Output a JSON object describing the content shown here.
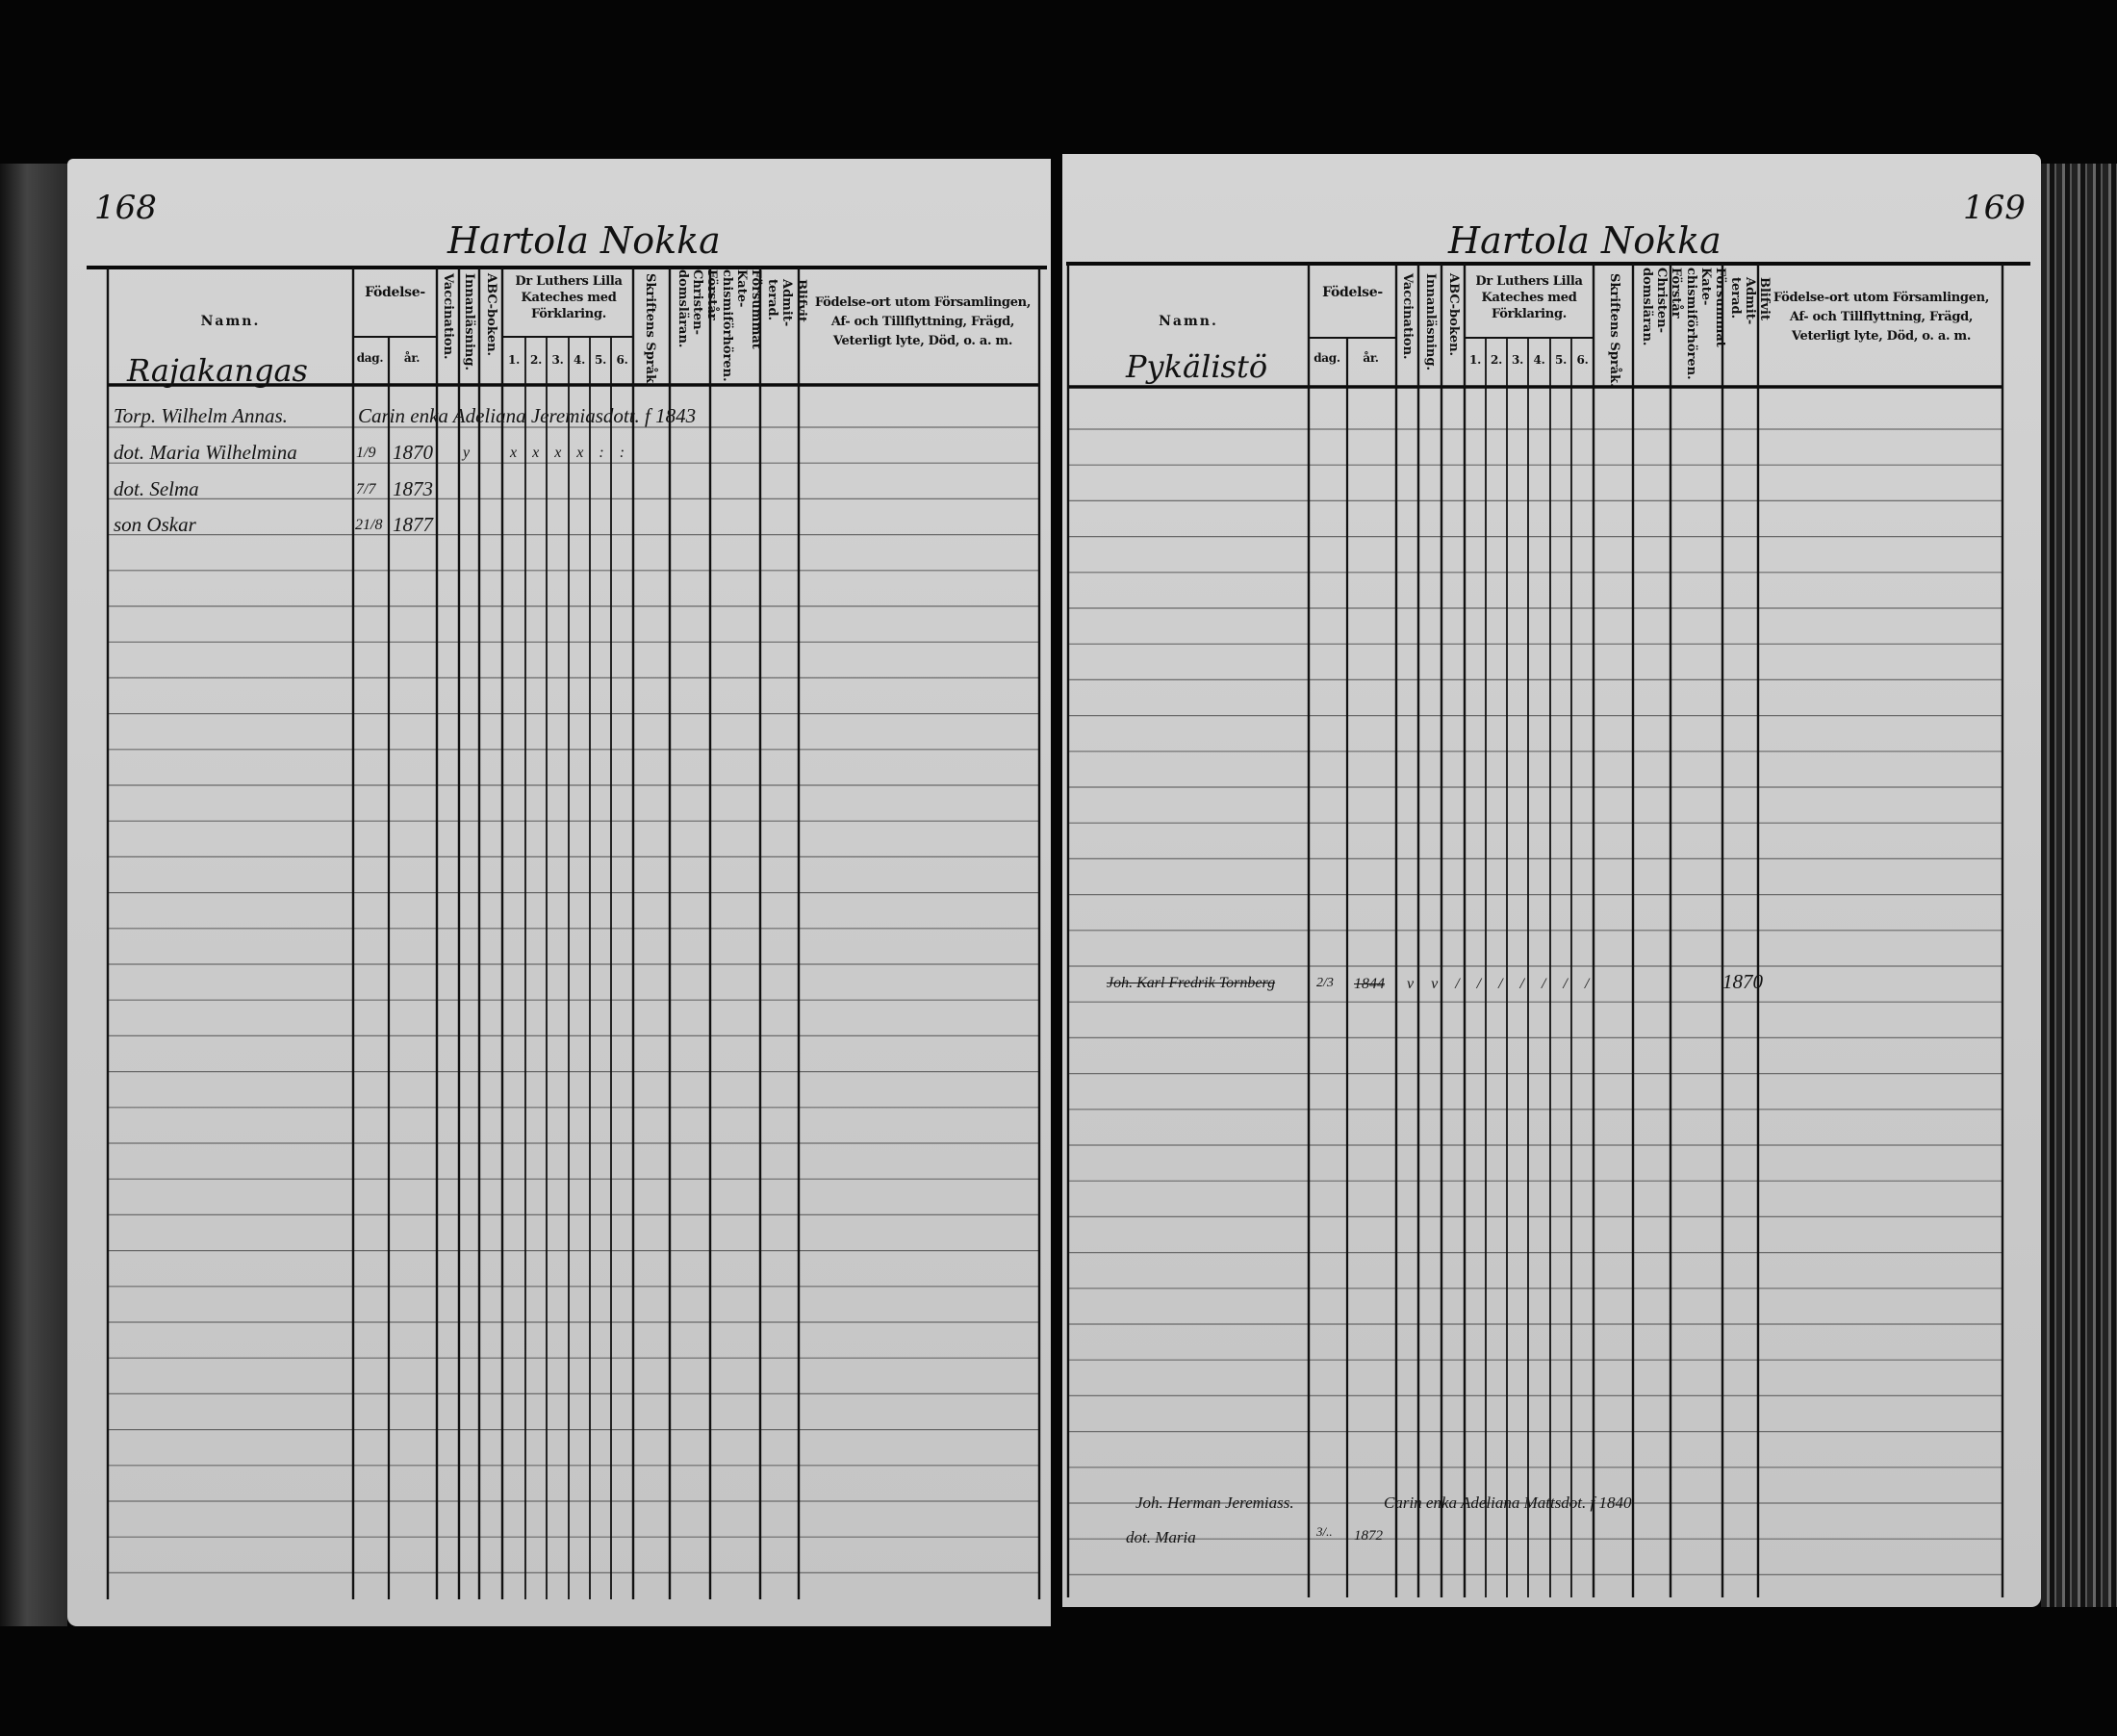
{
  "left_page": {
    "page_number": "168",
    "title": "Hartola Nokka",
    "section": "Rajakangas",
    "headers": {
      "namn": "Namn.",
      "fodelse": "Födelse-",
      "dag": "dag.",
      "ar": "år.",
      "vaccination": "Vaccination.",
      "innanlasning": "Innanläsning.",
      "abc": "ABC-boken.",
      "luther": "Dr Luthers Lilla Kateches med Förklaring.",
      "nums": [
        "1.",
        "2.",
        "3.",
        "4.",
        "5.",
        "6."
      ],
      "skriftens": "Skriftens Språk.",
      "forstar": "Förstår Christen-domsläran.",
      "forsummat": "Försummat Kate-chismiförhören.",
      "blifvit": "Blifvit Admit-terad.",
      "fodelseort": "Födelse-ort utom Församlingen, Af- och Tillflyttning, Frägd, Veterligt lyte, Död, o. a. m."
    },
    "entries": [
      {
        "name": "Torp. Wilhelm Annas.",
        "note": "Carin enka Adeliana Jeremiasdott. f 1843"
      },
      {
        "name": "dot. Maria Wilhelmina",
        "dag": "1/9",
        "ar": "1870",
        "marks": "y",
        "kat": "x x x x : :"
      },
      {
        "name": "dot. Selma",
        "dag": "7/7",
        "ar": "1873"
      },
      {
        "name": "son Oskar",
        "dag": "21/8",
        "ar": "1877"
      }
    ]
  },
  "right_page": {
    "page_number": "169",
    "title": "Hartola Nokka",
    "section": "Pykälistö",
    "headers": {
      "namn": "Namn.",
      "fodelse": "Födelse-",
      "dag": "dag.",
      "ar": "år.",
      "vaccination": "Vaccination.",
      "innanlasning": "Innanläsning.",
      "abc": "ABC-boken.",
      "luther": "Dr Luthers Lilla Kateches med Förklaring.",
      "nums": [
        "1.",
        "2.",
        "3.",
        "4.",
        "5.",
        "6."
      ],
      "skriftens": "Skriftens Språk.",
      "forstar": "Förstår Christen-domsläran.",
      "forsummat": "Försummat Kate-chismiförhören.",
      "blifvit": "Blifvit Admit-terad.",
      "fodelseort": "Födelse-ort utom Församlingen, Af- och Tillflyttning, Frägd, Veterligt lyte, Död, o. a. m."
    },
    "entries": [
      {
        "name": "Joh. Karl Fredrik Tornberg",
        "dag": "2/3",
        "ar": "1844",
        "marks": "v v / / / / / / /",
        "admitted": "1870",
        "struck": true
      },
      {
        "name": "Joh. Herman Jeremiass.",
        "note": "Carin enka Adeliana Mattsdot. f 1840"
      },
      {
        "name": "dot. Maria",
        "dag": "3/..",
        "ar": "1872"
      }
    ]
  }
}
